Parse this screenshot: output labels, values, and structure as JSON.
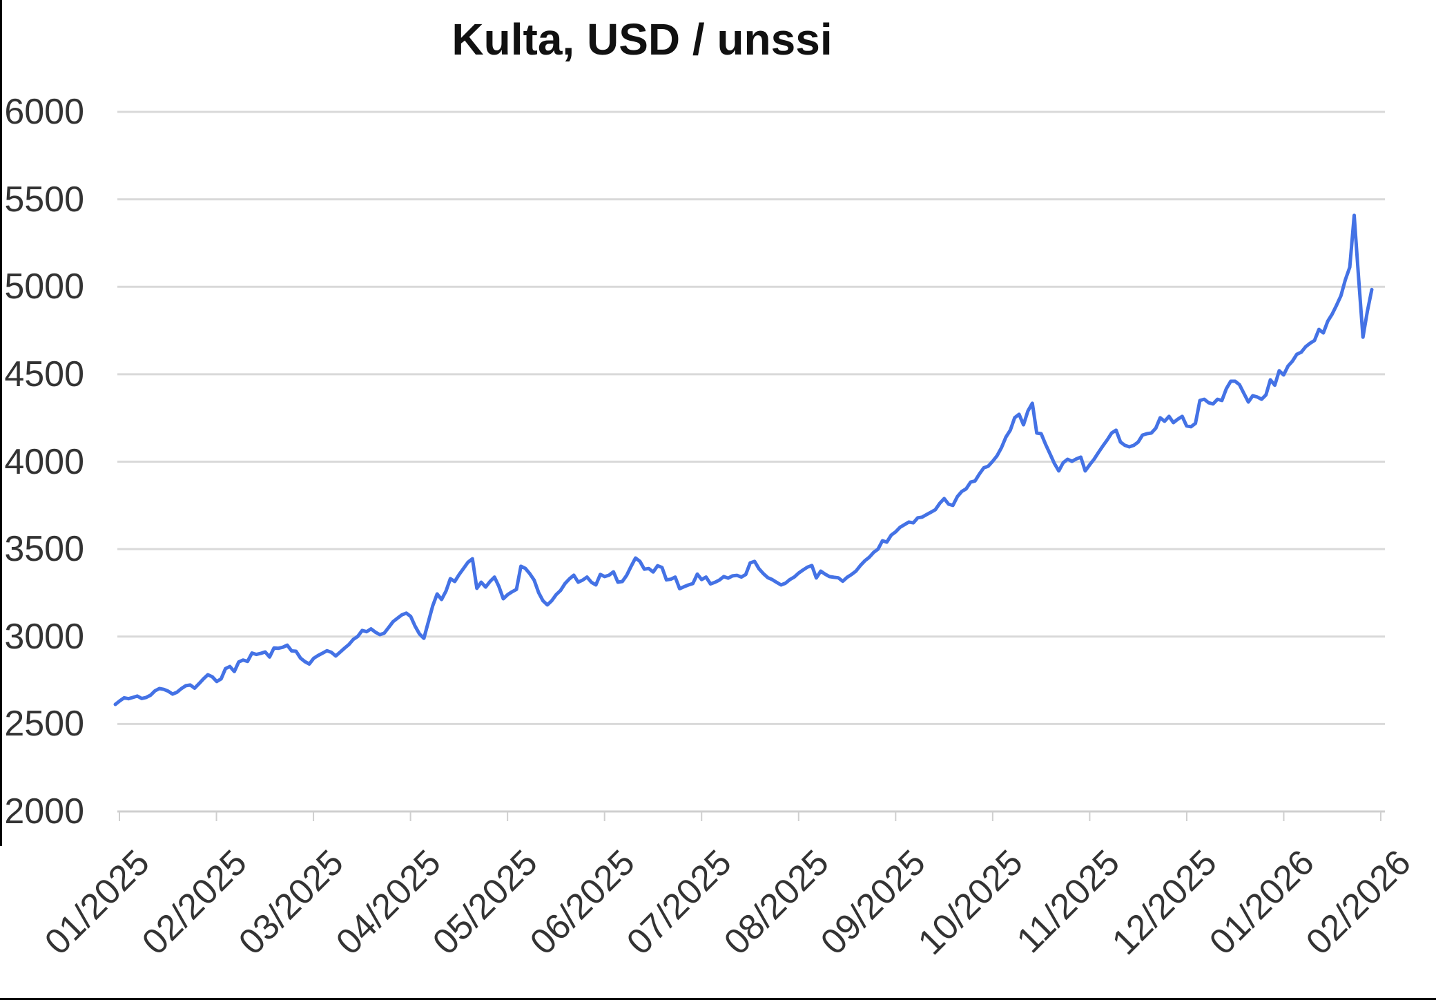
{
  "title": "Kulta, USD / unssi",
  "chart_data": {
    "type": "line",
    "title": "Kulta, USD / unssi",
    "legend": false,
    "grid": true,
    "line_color": "#4472e5",
    "gridline_color": "#d9d9d9",
    "axis_color": "#cfcfcf",
    "label_color": "#333333",
    "ylim": [
      2000,
      6000
    ],
    "y_tick_step": 500,
    "y_tick_labels": [
      "6000",
      "5500",
      "5000",
      "4500",
      "4000",
      "3500",
      "3000",
      "2500",
      "2000"
    ],
    "x_tick_labels": [
      "01/2025",
      "02/2025",
      "03/2025",
      "04/2025",
      "05/2025",
      "06/2025",
      "07/2025",
      "08/2025",
      "09/2025",
      "10/2025",
      "11/2025",
      "12/2025",
      "01/2026",
      "02/2026"
    ],
    "points_per_month": 22,
    "series": [
      {
        "name": "Kulta, USD / unssi",
        "values": [
          2612,
          2632,
          2650,
          2645,
          2652,
          2660,
          2646,
          2652,
          2665,
          2690,
          2703,
          2698,
          2688,
          2671,
          2682,
          2703,
          2719,
          2723,
          2705,
          2731,
          2758,
          2782,
          2770,
          2743,
          2758,
          2817,
          2829,
          2800,
          2855,
          2866,
          2858,
          2906,
          2898,
          2904,
          2912,
          2883,
          2935,
          2933,
          2939,
          2951,
          2918,
          2916,
          2877,
          2857,
          2843,
          2876,
          2892,
          2905,
          2919,
          2910,
          2889,
          2911,
          2934,
          2955,
          2984,
          3001,
          3035,
          3028,
          3044,
          3025,
          3011,
          3019,
          3052,
          3085,
          3105,
          3124,
          3134,
          3115,
          3060,
          3015,
          2990,
          3083,
          3176,
          3244,
          3212,
          3260,
          3331,
          3315,
          3355,
          3390,
          3425,
          3445,
          3276,
          3311,
          3283,
          3315,
          3340,
          3287,
          3216,
          3240,
          3256,
          3270,
          3402,
          3390,
          3360,
          3323,
          3252,
          3205,
          3181,
          3205,
          3240,
          3264,
          3303,
          3330,
          3351,
          3311,
          3323,
          3340,
          3310,
          3295,
          3355,
          3343,
          3351,
          3370,
          3311,
          3315,
          3351,
          3402,
          3449,
          3430,
          3385,
          3389,
          3369,
          3405,
          3395,
          3324,
          3328,
          3340,
          3274,
          3285,
          3295,
          3303,
          3357,
          3326,
          3340,
          3301,
          3310,
          3323,
          3343,
          3334,
          3347,
          3350,
          3340,
          3355,
          3421,
          3430,
          3387,
          3360,
          3337,
          3326,
          3310,
          3295,
          3305,
          3326,
          3340,
          3363,
          3381,
          3397,
          3406,
          3335,
          3374,
          3357,
          3343,
          3339,
          3336,
          3316,
          3339,
          3355,
          3374,
          3406,
          3433,
          3453,
          3481,
          3500,
          3548,
          3540,
          3580,
          3599,
          3625,
          3640,
          3655,
          3650,
          3679,
          3683,
          3697,
          3711,
          3725,
          3762,
          3789,
          3757,
          3750,
          3800,
          3830,
          3845,
          3883,
          3890,
          3930,
          3965,
          3974,
          4002,
          4034,
          4080,
          4140,
          4180,
          4251,
          4271,
          4211,
          4290,
          4334,
          4164,
          4160,
          4100,
          4046,
          3990,
          3947,
          3994,
          4014,
          4002,
          4016,
          4026,
          3947,
          3982,
          4014,
          4053,
          4090,
          4125,
          4164,
          4180,
          4112,
          4093,
          4085,
          4093,
          4112,
          4152,
          4160,
          4164,
          4191,
          4251,
          4231,
          4259,
          4223,
          4243,
          4259,
          4204,
          4200,
          4219,
          4350,
          4357,
          4337,
          4330,
          4357,
          4350,
          4417,
          4460,
          4460,
          4440,
          4390,
          4341,
          4377,
          4370,
          4357,
          4382,
          4468,
          4437,
          4520,
          4496,
          4547,
          4575,
          4614,
          4626,
          4657,
          4677,
          4693,
          4756,
          4736,
          4803,
          4843,
          4894,
          4949,
          5040,
          5112,
          5408,
          5050,
          4712,
          4860,
          4984
        ]
      }
    ]
  }
}
